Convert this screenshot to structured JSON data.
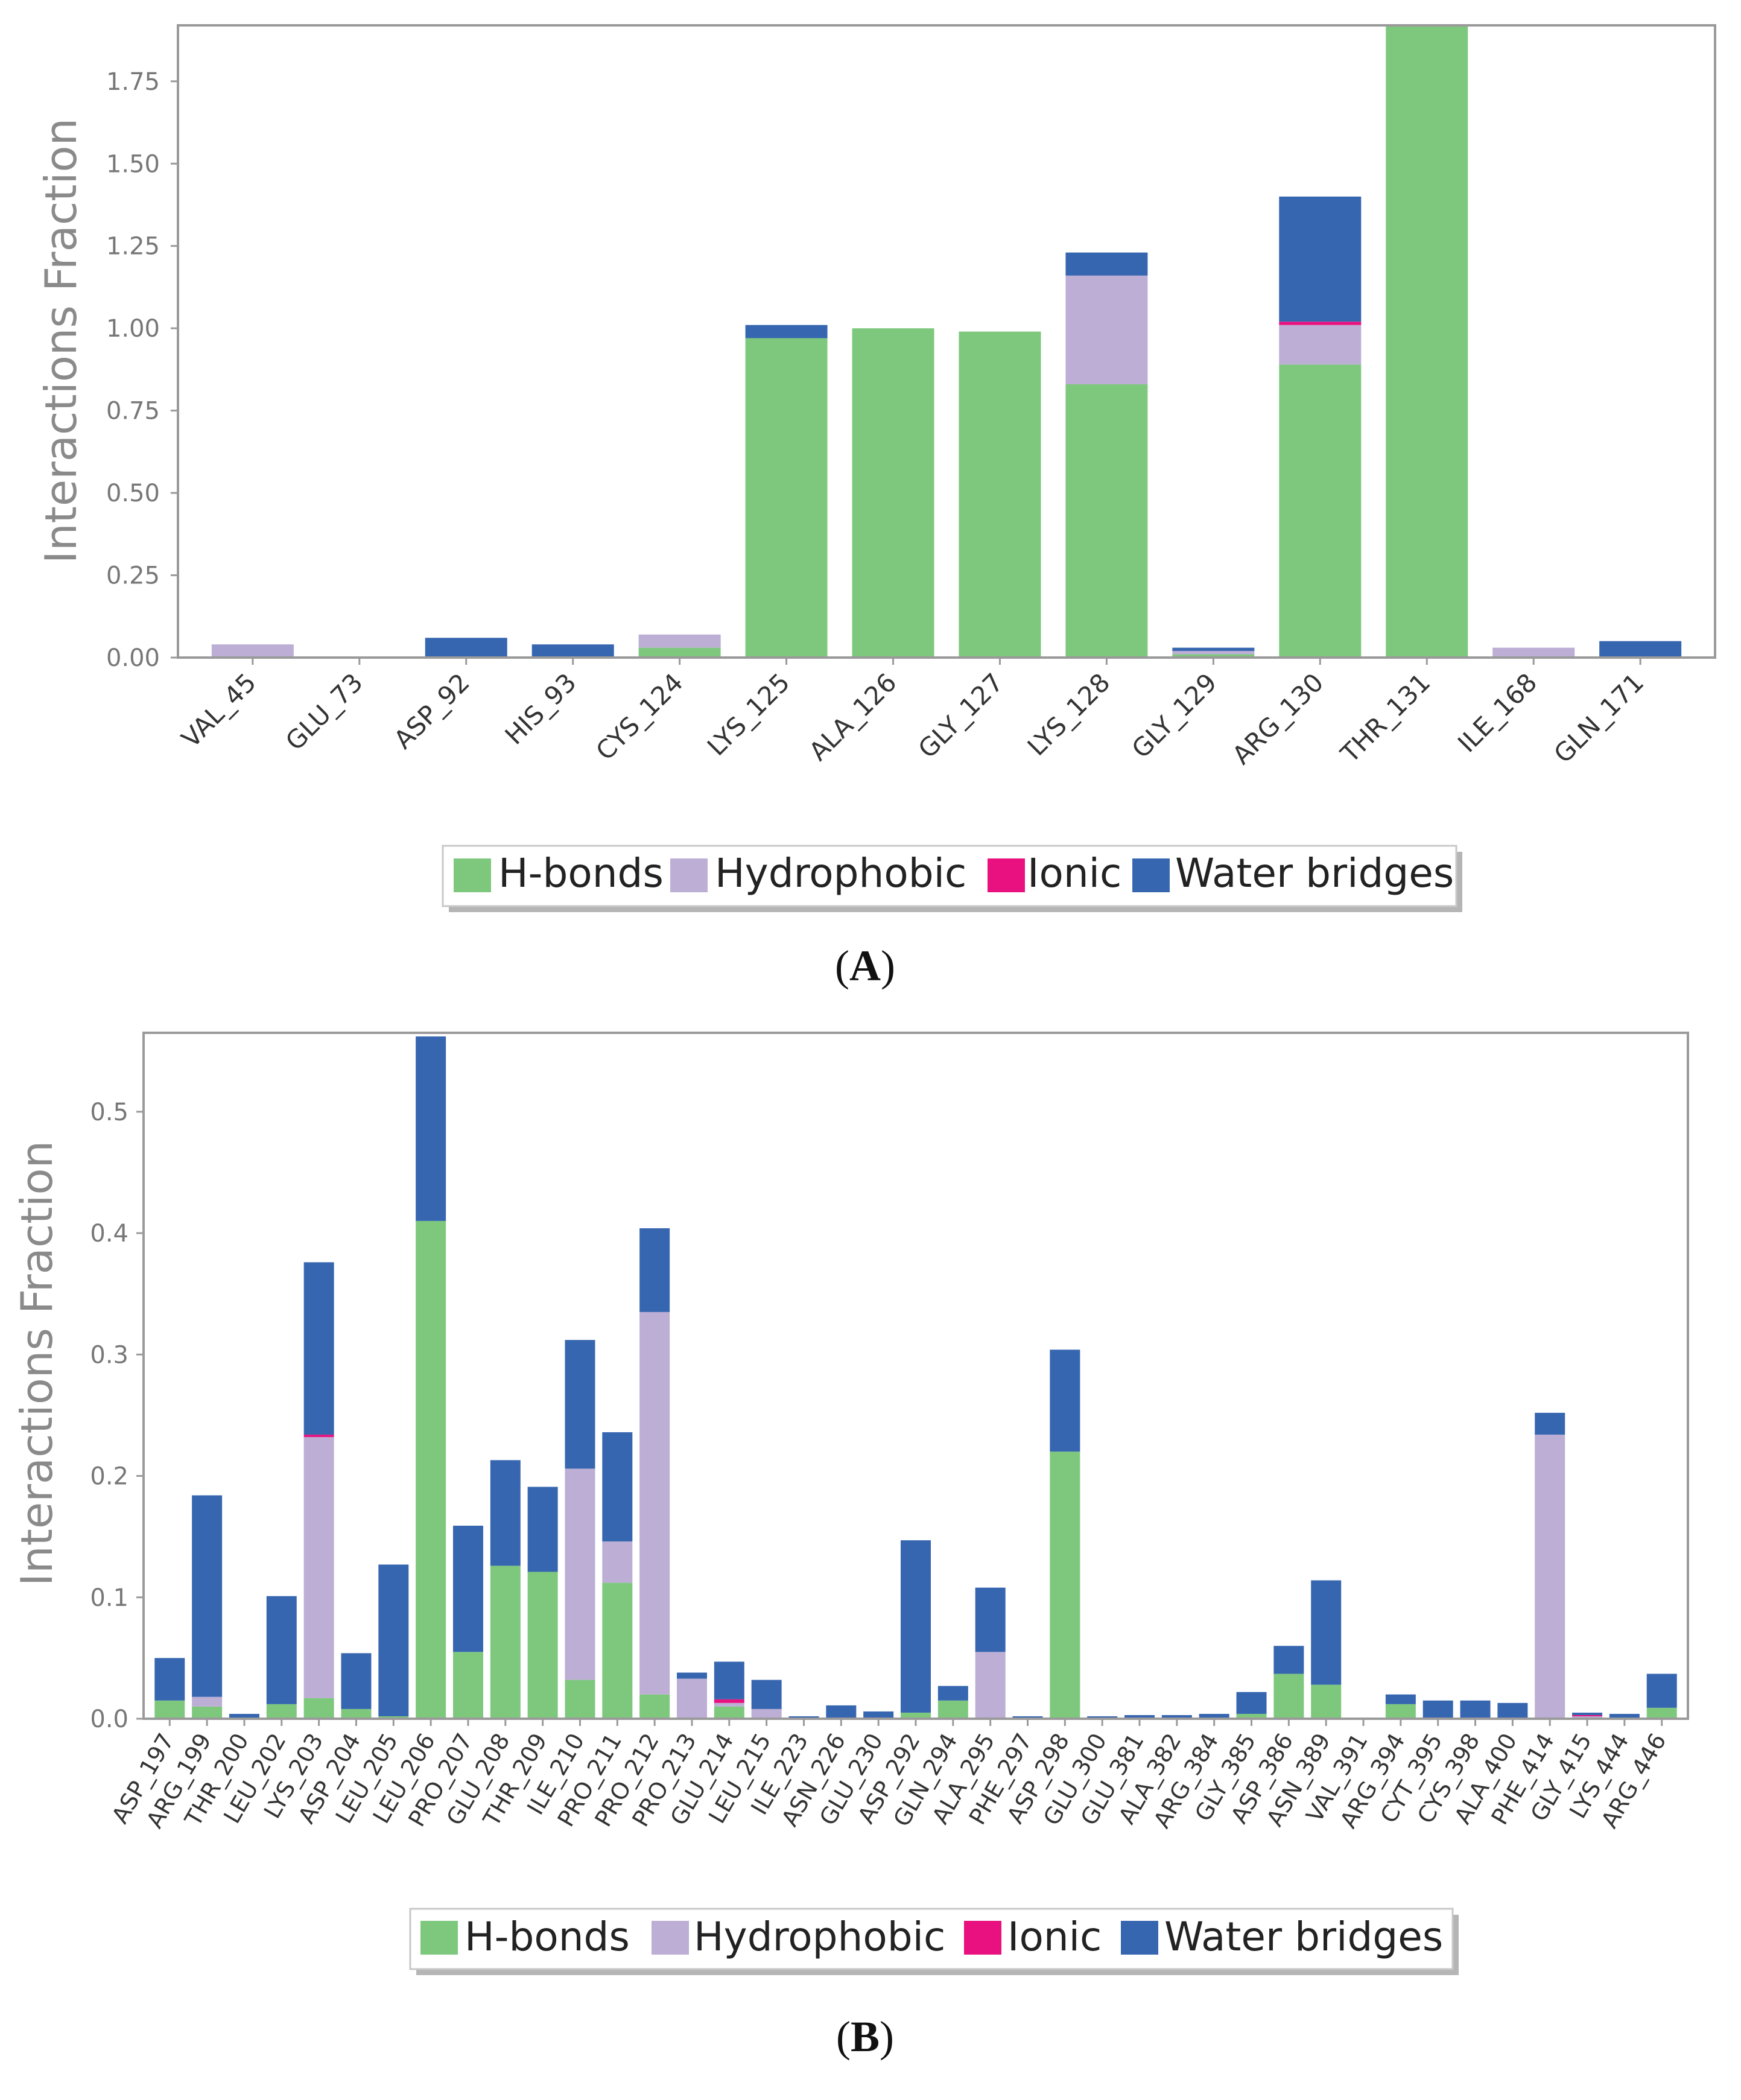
{
  "colors": {
    "hbonds": "#7ec87e",
    "hydrophobic": "#bcaed4",
    "ionic": "#e8117f",
    "water": "#3766b0",
    "frame": "#9a9a9a",
    "grid_tick": "#9a9a9a"
  },
  "panels": [
    {
      "label": "(A)",
      "label_prefix": "(",
      "label_letter": "A",
      "label_suffix": ")"
    },
    {
      "label": "(B)",
      "label_prefix": "(",
      "label_letter": "B",
      "label_suffix": ")"
    }
  ],
  "chart_data": [
    {
      "type": "bar",
      "stacked": true,
      "ylabel": "Interactions Fraction",
      "ylim": [
        0,
        1.92
      ],
      "yticks": [
        "0.00",
        "0.25",
        "0.50",
        "0.75",
        "1.00",
        "1.25",
        "1.50",
        "1.75"
      ],
      "legend": [
        "H-bonds",
        "Hydrophobic",
        "Ionic",
        "Water bridges"
      ],
      "legend_placement": "bottom-center",
      "categories": [
        "VAL_45",
        "GLU_73",
        "ASP_92",
        "HIS_93",
        "CYS_124",
        "LYS_125",
        "ALA_126",
        "GLY_127",
        "LYS_128",
        "GLY_129",
        "ARG_130",
        "THR_131",
        "ILE_168",
        "GLN_171"
      ],
      "series": [
        {
          "name": "H-bonds",
          "values": [
            0,
            0,
            0,
            0,
            0.03,
            0.97,
            1.0,
            0.99,
            0.83,
            0.01,
            0.89,
            1.92,
            0,
            0
          ]
        },
        {
          "name": "Hydrophobic",
          "values": [
            0.04,
            0,
            0,
            0,
            0.04,
            0,
            0,
            0,
            0.33,
            0.01,
            0.12,
            0,
            0.03,
            0
          ]
        },
        {
          "name": "Ionic",
          "values": [
            0,
            0,
            0,
            0,
            0,
            0,
            0,
            0,
            0,
            0,
            0.01,
            0,
            0,
            0
          ]
        },
        {
          "name": "Water bridges",
          "values": [
            0,
            0,
            0.06,
            0.04,
            0,
            0.04,
            0,
            0,
            0.07,
            0.01,
            0.38,
            0,
            0,
            0.05
          ]
        }
      ]
    },
    {
      "type": "bar",
      "stacked": true,
      "ylabel": "Interactions Fraction",
      "ylim": [
        0,
        0.565
      ],
      "yticks": [
        "0.0",
        "0.1",
        "0.2",
        "0.3",
        "0.4",
        "0.5"
      ],
      "legend": [
        "H-bonds",
        "Hydrophobic",
        "Ionic",
        "Water bridges"
      ],
      "legend_placement": "bottom-center",
      "categories": [
        "ASP_197",
        "ARG_199",
        "THR_200",
        "LEU_202",
        "LYS_203",
        "ASP_204",
        "LEU_205",
        "LEU_206",
        "PRO_207",
        "GLU_208",
        "THR_209",
        "ILE_210",
        "PRO_211",
        "PRO_212",
        "PRO_213",
        "GLU_214",
        "LEU_215",
        "ILE_223",
        "ASN_226",
        "GLU_230",
        "ASP_292",
        "GLN_294",
        "ALA_295",
        "PHE_297",
        "ASP_298",
        "GLU_300",
        "GLU_381",
        "ALA_382",
        "ARG_384",
        "GLY_385",
        "ASP_386",
        "ASN_389",
        "VAL_391",
        "ARG_394",
        "CYT_395",
        "CYS_398",
        "ALA_400",
        "PHE_414",
        "GLY_415",
        "LYS_444",
        "ARG_446"
      ],
      "series": [
        {
          "name": "H-bonds",
          "values": [
            0.015,
            0.01,
            0,
            0.012,
            0.017,
            0.008,
            0.002,
            0.41,
            0.055,
            0.126,
            0.121,
            0.032,
            0.112,
            0.02,
            0,
            0.01,
            0,
            0,
            0,
            0,
            0.005,
            0.015,
            0,
            0,
            0.22,
            0,
            0,
            0,
            0,
            0.004,
            0.037,
            0.028,
            0,
            0.012,
            0,
            0,
            0,
            0,
            0,
            0,
            0.009
          ]
        },
        {
          "name": "Hydrophobic",
          "values": [
            0,
            0.008,
            0,
            0,
            0.215,
            0,
            0,
            0,
            0,
            0,
            0,
            0.174,
            0.034,
            0.315,
            0.033,
            0.003,
            0.008,
            0,
            0,
            0,
            0,
            0,
            0.055,
            0,
            0,
            0,
            0,
            0,
            0,
            0,
            0,
            0,
            0,
            0,
            0,
            0,
            0,
            0.234,
            0.002,
            0,
            0
          ]
        },
        {
          "name": "Ionic",
          "values": [
            0,
            0,
            0,
            0,
            0.002,
            0,
            0,
            0,
            0,
            0,
            0,
            0,
            0,
            0,
            0,
            0.003,
            0,
            0,
            0,
            0,
            0,
            0,
            0,
            0,
            0,
            0,
            0,
            0,
            0,
            0,
            0,
            0,
            0,
            0,
            0,
            0,
            0,
            0,
            0.001,
            0,
            0
          ]
        },
        {
          "name": "Water bridges",
          "values": [
            0.035,
            0.166,
            0.004,
            0.089,
            0.142,
            0.046,
            0.125,
            0.152,
            0.104,
            0.087,
            0.07,
            0.106,
            0.09,
            0.069,
            0.005,
            0.031,
            0.024,
            0.002,
            0.011,
            0.006,
            0.142,
            0.012,
            0.053,
            0.002,
            0.084,
            0.002,
            0.003,
            0.003,
            0.004,
            0.018,
            0.023,
            0.086,
            0.001,
            0.008,
            0.015,
            0.015,
            0.013,
            0.018,
            0.002,
            0.004,
            0.028
          ]
        }
      ]
    }
  ]
}
